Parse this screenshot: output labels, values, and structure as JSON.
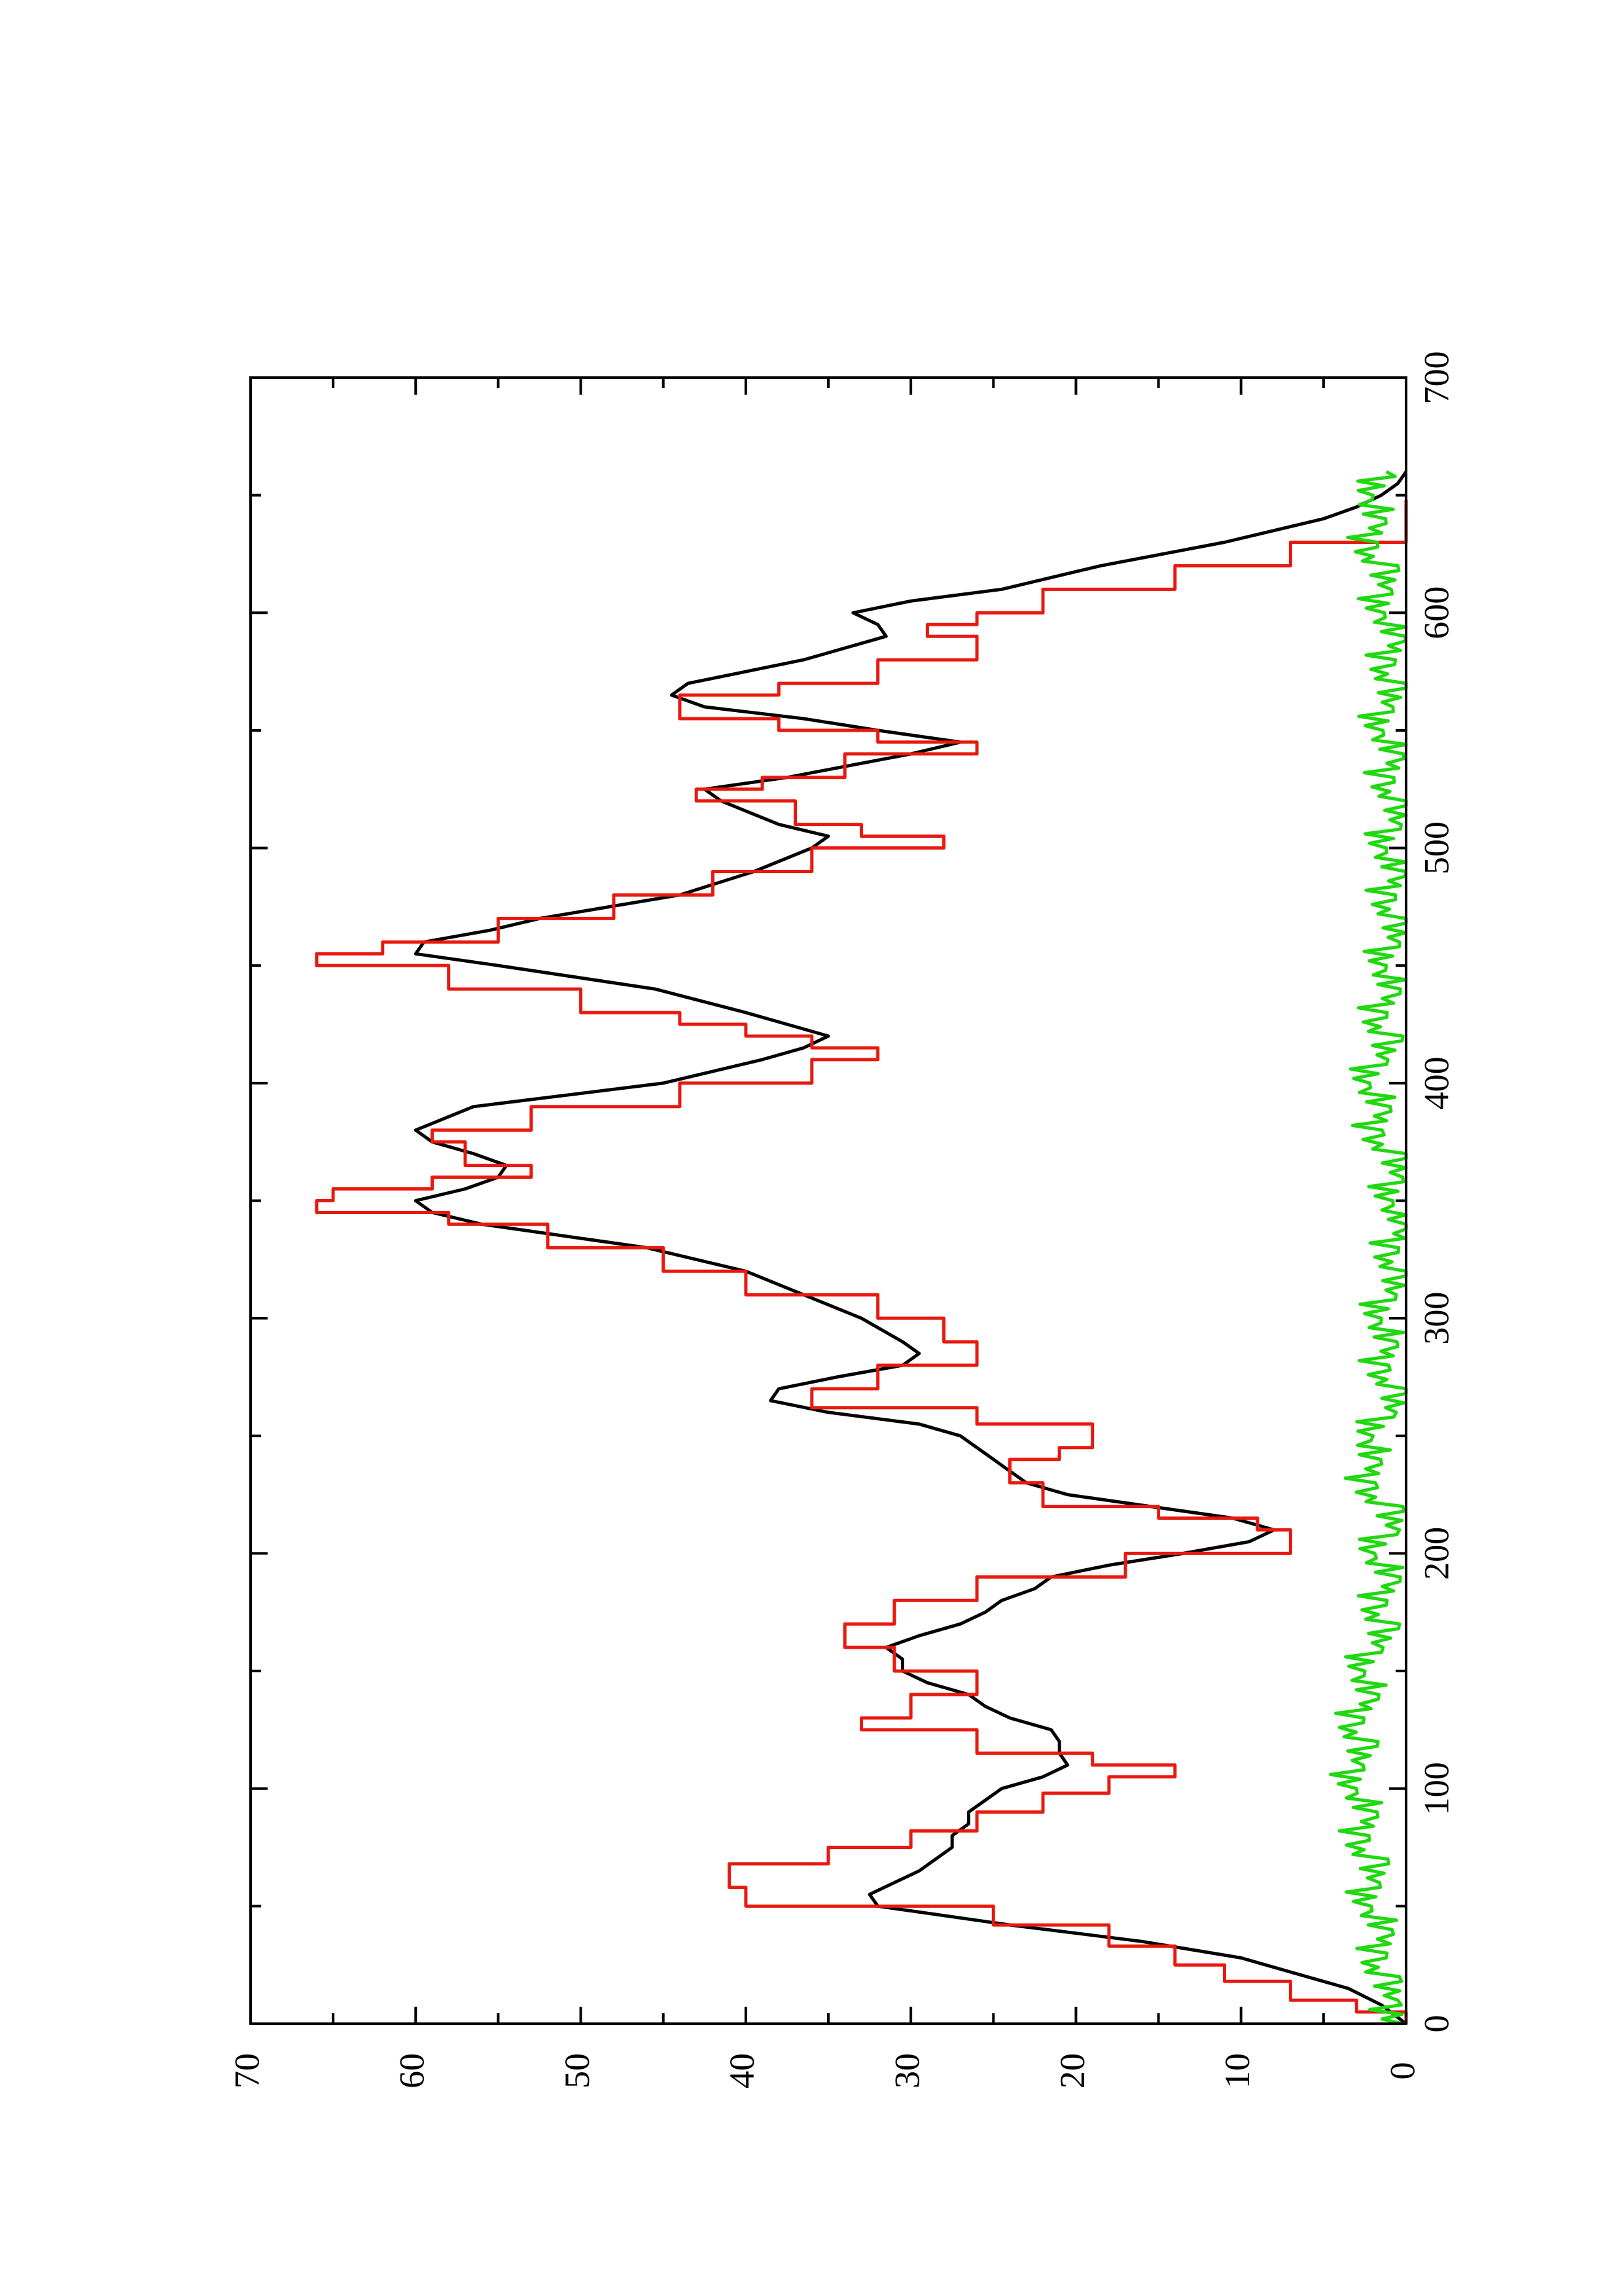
{
  "chart_data": {
    "type": "line",
    "orientation": "rotated-90-ccw",
    "title": "",
    "xlabel": "",
    "ylabel": "",
    "xlim": [
      0,
      700
    ],
    "ylim": [
      0,
      70
    ],
    "x_ticks": [
      0,
      100,
      200,
      300,
      400,
      500,
      600,
      700
    ],
    "x_tick_labels": [
      "0",
      "100",
      "200",
      "300",
      "400",
      "500",
      "600",
      "700"
    ],
    "x_minor_ticks": [
      50,
      150,
      250,
      350,
      450,
      550,
      650
    ],
    "y_ticks": [
      0,
      10,
      20,
      30,
      40,
      50,
      60,
      70
    ],
    "y_tick_labels": [
      "0",
      "10",
      "20",
      "30",
      "40",
      "50",
      "60",
      "70"
    ],
    "y_minor_ticks": [
      5,
      15,
      25,
      35,
      45,
      55,
      65
    ],
    "grid": false,
    "legend": "none",
    "series": [
      {
        "color": "#000000",
        "style": "smooth",
        "x": [
          0,
          8,
          15,
          22,
          28,
          35,
          42,
          50,
          55,
          60,
          65,
          70,
          75,
          80,
          85,
          90,
          95,
          100,
          105,
          110,
          115,
          120,
          125,
          130,
          135,
          140,
          145,
          150,
          155,
          160,
          165,
          170,
          175,
          180,
          185,
          190,
          195,
          200,
          205,
          210,
          215,
          220,
          225,
          230,
          240,
          250,
          255,
          260,
          265,
          270,
          275,
          280,
          285,
          290,
          300,
          310,
          320,
          330,
          340,
          345,
          350,
          355,
          360,
          365,
          370,
          375,
          380,
          390,
          400,
          410,
          415,
          420,
          425,
          430,
          440,
          450,
          455,
          460,
          465,
          470,
          480,
          490,
          500,
          505,
          510,
          520,
          525,
          530,
          540,
          545,
          550,
          555,
          560,
          565,
          570,
          580,
          590,
          595,
          600,
          605,
          610,
          620,
          630,
          640,
          645,
          650,
          655,
          660
        ],
        "values": [
          0,
          1.5,
          3.5,
          7,
          10,
          16,
          24,
          32,
          32.5,
          31,
          29.5,
          28.5,
          27.5,
          27.5,
          26.5,
          26.5,
          25.5,
          24.5,
          22,
          20.5,
          21,
          21,
          21.5,
          24,
          25.5,
          26.5,
          29,
          30.5,
          30.5,
          31.5,
          29.5,
          27,
          25.5,
          24.5,
          22.5,
          21.5,
          18,
          13.5,
          9.5,
          8,
          10.5,
          15.5,
          20.5,
          23,
          25,
          27,
          29.5,
          35,
          38.5,
          38,
          34.5,
          30.5,
          29.5,
          30.5,
          33,
          36.5,
          40,
          46,
          56,
          59,
          60,
          57,
          55,
          54.5,
          56.5,
          59,
          60,
          56.5,
          45,
          39,
          36.5,
          35,
          37.5,
          40,
          45.5,
          55,
          60,
          59.5,
          55.5,
          52.5,
          44,
          39.5,
          36,
          35,
          38,
          41.5,
          42.5,
          37.5,
          30,
          27,
          32,
          36.5,
          42.5,
          44.5,
          43.5,
          36.5,
          31.5,
          32,
          33.5,
          30,
          24.5,
          18.5,
          11,
          5,
          3,
          1.5,
          0.5,
          0
        ]
      },
      {
        "color": "#e8190f",
        "style": "step",
        "x": [
          0,
          5,
          10,
          18,
          25,
          33,
          42,
          50,
          58,
          62,
          68,
          75,
          82,
          90,
          98,
          105,
          110,
          115,
          125,
          130,
          140,
          150,
          160,
          170,
          180,
          190,
          200,
          210,
          215,
          220,
          230,
          240,
          245,
          255,
          262,
          270,
          280,
          290,
          300,
          310,
          320,
          330,
          340,
          345,
          350,
          355,
          360,
          365,
          375,
          380,
          390,
          400,
          410,
          415,
          420,
          425,
          430,
          440,
          450,
          455,
          460,
          470,
          480,
          490,
          500,
          505,
          510,
          520,
          525,
          530,
          540,
          545,
          550,
          555,
          560,
          565,
          570,
          580,
          590,
          595,
          600,
          610,
          620,
          630,
          640,
          648
        ],
        "values": [
          0,
          3,
          7,
          11,
          14,
          18,
          25,
          40,
          41,
          41,
          35,
          30,
          26,
          22,
          18,
          14,
          19,
          26,
          33,
          30,
          26,
          31,
          34,
          31,
          26,
          17,
          7,
          9,
          15,
          22,
          24,
          21,
          19,
          26,
          36,
          32,
          26,
          28,
          32,
          40,
          45,
          52,
          58,
          66,
          65,
          59,
          53,
          57,
          59,
          53,
          44,
          36,
          32,
          36,
          40,
          44,
          50,
          58,
          66,
          62,
          55,
          48,
          42,
          36,
          28,
          33,
          37,
          43,
          39,
          34,
          26,
          32,
          38,
          44,
          44,
          38,
          32,
          26,
          29,
          26,
          22,
          14,
          7,
          0,
          0,
          0
        ]
      },
      {
        "color": "#1fd80f",
        "style": "noisy",
        "x": [
          0,
          10,
          20,
          30,
          40,
          50,
          60,
          70,
          80,
          90,
          100,
          110,
          120,
          130,
          140,
          150,
          160,
          170,
          180,
          190,
          200,
          210,
          220,
          230,
          240,
          250,
          260,
          270,
          280,
          290,
          300,
          310,
          320,
          330,
          340,
          350,
          360,
          370,
          380,
          390,
          400,
          410,
          420,
          430,
          440,
          450,
          460,
          470,
          480,
          490,
          500,
          510,
          520,
          530,
          540,
          550,
          560,
          570,
          580,
          590,
          600,
          610,
          620,
          630,
          640,
          650,
          660
        ],
        "values": [
          0.2,
          1.2,
          1.8,
          1.5,
          1.9,
          2.1,
          2.3,
          2.5,
          2.6,
          2.8,
          3.0,
          3.3,
          3.1,
          2.9,
          2.7,
          2.5,
          2.1,
          1.8,
          1.5,
          1.4,
          1.9,
          1.1,
          1.6,
          2.2,
          2.6,
          2.0,
          1.3,
          1.0,
          1.4,
          1.6,
          1.5,
          1.3,
          0.9,
          0.8,
          0.7,
          0.8,
          0.9,
          1.2,
          1.8,
          2.0,
          2.2,
          1.8,
          1.6,
          1.5,
          1.4,
          1.2,
          1.1,
          1.0,
          1.0,
          1.1,
          1.2,
          1.0,
          0.9,
          1.1,
          1.2,
          1.4,
          1.5,
          1.2,
          1.0,
          1.1,
          1.3,
          1.6,
          1.9,
          2.1,
          2.3,
          2.0,
          1.2
        ]
      }
    ]
  }
}
